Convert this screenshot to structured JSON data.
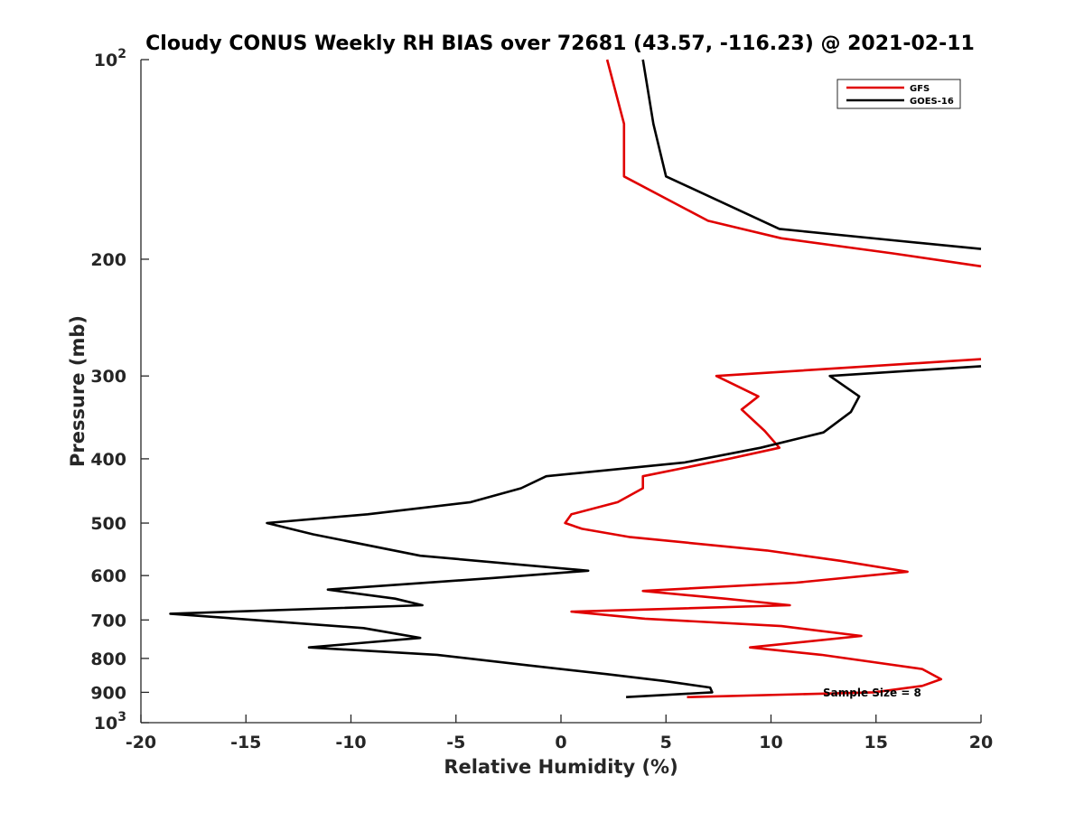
{
  "chart_data": {
    "type": "line",
    "title": "Cloudy CONUS Weekly RH BIAS over 72681 (43.57, -116.23) @ 2021-02-11",
    "xlabel": "Relative Humidity (%)",
    "ylabel": "Pressure (mb)",
    "xlim": [
      -20,
      20
    ],
    "ylim": [
      100,
      1000
    ],
    "y_scale": "log",
    "y_reversed": true,
    "grid": false,
    "legend_position": "top-right",
    "x_ticks": [
      "-20",
      "-15",
      "-10",
      "-5",
      "0",
      "5",
      "10",
      "15",
      "20"
    ],
    "y_ticks": [
      {
        "value": 100,
        "base": "10",
        "exp": "2"
      },
      {
        "value": 200,
        "label": "200"
      },
      {
        "value": 300,
        "label": "300"
      },
      {
        "value": 400,
        "label": "400"
      },
      {
        "value": 500,
        "label": "500"
      },
      {
        "value": 600,
        "label": "600"
      },
      {
        "value": 700,
        "label": "700"
      },
      {
        "value": 800,
        "label": "800"
      },
      {
        "value": 900,
        "label": "900"
      },
      {
        "value": 1000,
        "base": "10",
        "exp": "3"
      }
    ],
    "annotation": "Sample Size = 8",
    "series": [
      {
        "name": "GFS",
        "color": "#e00000",
        "segments": [
          [
            [
              2.2,
              100
            ],
            [
              3.0,
              125
            ],
            [
              3.0,
              150
            ],
            [
              7.0,
              175
            ],
            [
              10.5,
              186
            ],
            [
              15.8,
              196
            ],
            [
              20.0,
              205
            ]
          ],
          [
            [
              20.0,
              283
            ],
            [
              7.4,
              300
            ],
            [
              9.4,
              322
            ],
            [
              8.6,
              337
            ],
            [
              9.7,
              363
            ],
            [
              10.4,
              385
            ],
            [
              8.0,
              400
            ],
            [
              3.9,
              425
            ],
            [
              3.9,
              443
            ],
            [
              2.7,
              465
            ],
            [
              0.5,
              485
            ],
            [
              0.2,
              500
            ],
            [
              1.0,
              510
            ],
            [
              3.3,
              525
            ],
            [
              9.8,
              550
            ],
            [
              13.3,
              570
            ],
            [
              16.5,
              592
            ],
            [
              11.2,
              615
            ],
            [
              3.9,
              633
            ],
            [
              7.8,
              650
            ],
            [
              10.9,
              665
            ],
            [
              0.5,
              680
            ],
            [
              4.0,
              697
            ],
            [
              10.5,
              715
            ],
            [
              14.3,
              740
            ],
            [
              9.0,
              770
            ],
            [
              12.4,
              790
            ],
            [
              17.2,
              830
            ],
            [
              18.1,
              860
            ],
            [
              17.2,
              880
            ],
            [
              14.9,
              900
            ],
            [
              6.0,
              915
            ]
          ]
        ]
      },
      {
        "name": "GOES-16",
        "color": "#000000",
        "segments": [
          [
            [
              3.9,
              100
            ],
            [
              4.4,
              125
            ],
            [
              5.0,
              150
            ],
            [
              10.4,
              180
            ],
            [
              15.6,
              187
            ],
            [
              20.0,
              193
            ]
          ],
          [
            [
              20.0,
              290
            ],
            [
              12.8,
              300
            ],
            [
              14.2,
              322
            ],
            [
              13.8,
              340
            ],
            [
              12.5,
              365
            ],
            [
              9.5,
              385
            ],
            [
              5.9,
              405
            ],
            [
              -0.7,
              425
            ],
            [
              -1.9,
              443
            ],
            [
              -4.3,
              465
            ],
            [
              -9.2,
              485
            ],
            [
              -14.0,
              500
            ],
            [
              -11.8,
              520
            ],
            [
              -6.7,
              560
            ],
            [
              1.3,
              590
            ],
            [
              -3.2,
              605
            ],
            [
              -11.1,
              630
            ],
            [
              -7.9,
              650
            ],
            [
              -6.6,
              665
            ],
            [
              -18.6,
              685
            ],
            [
              -9.4,
              720
            ],
            [
              -6.7,
              745
            ],
            [
              -12.0,
              770
            ],
            [
              -5.9,
              790
            ],
            [
              -1.5,
              820
            ],
            [
              2.2,
              845
            ],
            [
              4.9,
              865
            ],
            [
              7.1,
              885
            ],
            [
              7.2,
              900
            ],
            [
              3.1,
              915
            ]
          ]
        ]
      }
    ]
  }
}
